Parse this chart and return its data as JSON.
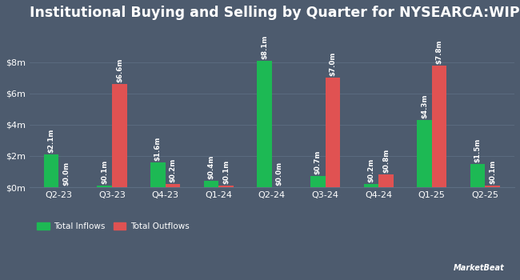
{
  "title": "Institutional Buying and Selling by Quarter for NYSEARCA:WIP",
  "quarters": [
    "Q2-23",
    "Q3-23",
    "Q4-23",
    "Q1-24",
    "Q2-24",
    "Q3-24",
    "Q4-24",
    "Q1-25",
    "Q2-25"
  ],
  "inflows": [
    2.1,
    0.1,
    1.6,
    0.4,
    8.1,
    0.7,
    0.2,
    4.3,
    1.5
  ],
  "outflows": [
    0.0,
    6.6,
    0.2,
    0.1,
    0.0,
    7.0,
    0.8,
    7.8,
    0.1
  ],
  "inflow_labels": [
    "$2.1m",
    "$0.1m",
    "$1.6m",
    "$0.4m",
    "$8.1m",
    "$0.7m",
    "$0.2m",
    "$4.3m",
    "$1.5m"
  ],
  "outflow_labels": [
    "$0.0m",
    "$6.6m",
    "$0.2m",
    "$0.1m",
    "$0.0m",
    "$7.0m",
    "$0.8m",
    "$7.8m",
    "$0.1m"
  ],
  "inflow_color": "#1db954",
  "outflow_color": "#e05252",
  "background_color": "#4d5b6e",
  "text_color": "#ffffff",
  "grid_color": "#5d6e82",
  "bar_width": 0.28,
  "ylim": [
    0,
    10.2
  ],
  "yticks": [
    0,
    2,
    4,
    6,
    8
  ],
  "ytick_labels": [
    "$0m",
    "$2m",
    "$4m",
    "$6m",
    "$8m"
  ],
  "legend_inflow": "Total Inflows",
  "legend_outflow": "Total Outflows",
  "title_fontsize": 12.5,
  "label_fontsize": 6.2,
  "tick_fontsize": 8,
  "legend_fontsize": 7.5
}
